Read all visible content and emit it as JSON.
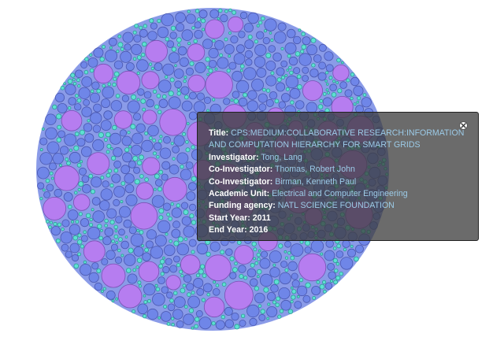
{
  "visualization": {
    "colors": {
      "large_bubble": "#b67df0",
      "large_bubble_stroke": "#7b4fb3",
      "medium_bubble": "#6f86e8",
      "medium_bubble_stroke": "#4a58b0",
      "small_bubble": "#5ee0d2",
      "small_bubble_stroke": "#2c9c95"
    }
  },
  "tooltip": {
    "close_icon": "close-icon",
    "title_label": "Title:",
    "title_value": "CPS:MEDIUM:COLLABORATIVE RESEARCH:INFORMATION AND COMPUTATION HIERARCHY FOR SMART GRIDS",
    "investigator_label": "Investigator:",
    "investigator_value": "Tong, Lang",
    "co_investigator_1_label": "Co-Investigator:",
    "co_investigator_1_value": "Thomas, Robert John",
    "co_investigator_2_label": "Co-Investigator:",
    "co_investigator_2_value": "Birman, Kenneth Paul",
    "academic_unit_label": "Academic Unit:",
    "academic_unit_value": "Electrical and Computer Engineering",
    "funding_agency_label": "Funding agency:",
    "funding_agency_value": "NATL SCIENCE FOUNDATION",
    "start_year_label": "Start Year:",
    "start_year_value": "2011",
    "end_year_label": "End Year:",
    "end_year_value": "2016"
  }
}
